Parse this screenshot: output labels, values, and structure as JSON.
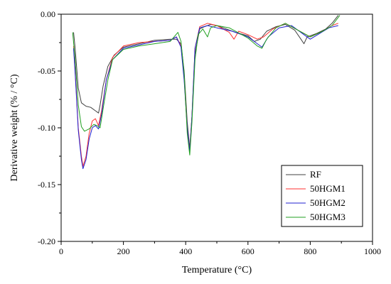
{
  "chart_data": {
    "type": "line",
    "title": "",
    "xlabel": "Temperature (°C)",
    "ylabel": "Derivative weight (% / °C)",
    "xlim": [
      0,
      1000
    ],
    "ylim": [
      -0.2,
      0.0
    ],
    "grid": false,
    "legend_position": "bottom-right",
    "x_ticks": [
      0,
      200,
      400,
      600,
      800,
      1000
    ],
    "x_tick_labels": [
      "0",
      "200",
      "400",
      "600",
      "800",
      "1000"
    ],
    "y_ticks": [
      0.0,
      -0.05,
      -0.1,
      -0.15,
      -0.2
    ],
    "y_tick_labels": [
      "0.00",
      "-0.05",
      "-0.10",
      "-0.15",
      "-0.20"
    ],
    "series": [
      {
        "name": "RF",
        "color": "#404040",
        "points": [
          [
            40,
            -0.016
          ],
          [
            45,
            -0.03
          ],
          [
            55,
            -0.065
          ],
          [
            65,
            -0.078
          ],
          [
            80,
            -0.081
          ],
          [
            95,
            -0.082
          ],
          [
            110,
            -0.085
          ],
          [
            120,
            -0.087
          ],
          [
            125,
            -0.08
          ],
          [
            135,
            -0.063
          ],
          [
            150,
            -0.046
          ],
          [
            170,
            -0.036
          ],
          [
            200,
            -0.029
          ],
          [
            250,
            -0.026
          ],
          [
            300,
            -0.023
          ],
          [
            350,
            -0.022
          ],
          [
            370,
            -0.022
          ],
          [
            385,
            -0.026
          ],
          [
            395,
            -0.05
          ],
          [
            405,
            -0.095
          ],
          [
            413,
            -0.118
          ],
          [
            420,
            -0.09
          ],
          [
            430,
            -0.035
          ],
          [
            445,
            -0.013
          ],
          [
            460,
            -0.011
          ],
          [
            480,
            -0.009
          ],
          [
            500,
            -0.01
          ],
          [
            520,
            -0.012
          ],
          [
            560,
            -0.016
          ],
          [
            600,
            -0.019
          ],
          [
            620,
            -0.024
          ],
          [
            640,
            -0.022
          ],
          [
            660,
            -0.015
          ],
          [
            690,
            -0.011
          ],
          [
            720,
            -0.009
          ],
          [
            750,
            -0.014
          ],
          [
            770,
            -0.022
          ],
          [
            780,
            -0.026
          ],
          [
            790,
            -0.02
          ],
          [
            820,
            -0.017
          ],
          [
            850,
            -0.013
          ],
          [
            870,
            -0.008
          ],
          [
            890,
            -0.001
          ]
        ]
      },
      {
        "name": "50HGM1",
        "color": "#ff3030",
        "points": [
          [
            40,
            -0.028
          ],
          [
            45,
            -0.05
          ],
          [
            55,
            -0.1
          ],
          [
            65,
            -0.125
          ],
          [
            70,
            -0.134
          ],
          [
            80,
            -0.125
          ],
          [
            90,
            -0.105
          ],
          [
            100,
            -0.094
          ],
          [
            110,
            -0.092
          ],
          [
            120,
            -0.098
          ],
          [
            130,
            -0.085
          ],
          [
            145,
            -0.058
          ],
          [
            165,
            -0.038
          ],
          [
            200,
            -0.028
          ],
          [
            250,
            -0.025
          ],
          [
            300,
            -0.024
          ],
          [
            350,
            -0.023
          ],
          [
            370,
            -0.02
          ],
          [
            385,
            -0.028
          ],
          [
            395,
            -0.055
          ],
          [
            405,
            -0.1
          ],
          [
            413,
            -0.12
          ],
          [
            420,
            -0.09
          ],
          [
            430,
            -0.03
          ],
          [
            445,
            -0.011
          ],
          [
            470,
            -0.008
          ],
          [
            500,
            -0.01
          ],
          [
            540,
            -0.016
          ],
          [
            555,
            -0.022
          ],
          [
            570,
            -0.015
          ],
          [
            600,
            -0.018
          ],
          [
            630,
            -0.022
          ],
          [
            650,
            -0.02
          ],
          [
            680,
            -0.013
          ],
          [
            720,
            -0.008
          ],
          [
            760,
            -0.014
          ],
          [
            800,
            -0.02
          ],
          [
            840,
            -0.015
          ],
          [
            870,
            -0.01
          ],
          [
            890,
            -0.008
          ]
        ]
      },
      {
        "name": "50HGM2",
        "color": "#2020d0",
        "points": [
          [
            40,
            -0.03
          ],
          [
            45,
            -0.052
          ],
          [
            55,
            -0.102
          ],
          [
            65,
            -0.128
          ],
          [
            70,
            -0.136
          ],
          [
            80,
            -0.128
          ],
          [
            90,
            -0.11
          ],
          [
            100,
            -0.1
          ],
          [
            110,
            -0.098
          ],
          [
            120,
            -0.101
          ],
          [
            130,
            -0.088
          ],
          [
            145,
            -0.058
          ],
          [
            165,
            -0.04
          ],
          [
            200,
            -0.03
          ],
          [
            250,
            -0.027
          ],
          [
            300,
            -0.024
          ],
          [
            350,
            -0.023
          ],
          [
            370,
            -0.02
          ],
          [
            385,
            -0.029
          ],
          [
            395,
            -0.058
          ],
          [
            405,
            -0.1
          ],
          [
            413,
            -0.121
          ],
          [
            420,
            -0.09
          ],
          [
            430,
            -0.03
          ],
          [
            445,
            -0.012
          ],
          [
            470,
            -0.01
          ],
          [
            500,
            -0.012
          ],
          [
            550,
            -0.015
          ],
          [
            600,
            -0.02
          ],
          [
            625,
            -0.025
          ],
          [
            645,
            -0.029
          ],
          [
            665,
            -0.02
          ],
          [
            700,
            -0.012
          ],
          [
            740,
            -0.01
          ],
          [
            780,
            -0.018
          ],
          [
            800,
            -0.022
          ],
          [
            830,
            -0.017
          ],
          [
            860,
            -0.012
          ],
          [
            890,
            -0.01
          ]
        ]
      },
      {
        "name": "50HGM3",
        "color": "#20a020",
        "points": [
          [
            37,
            -0.016
          ],
          [
            45,
            -0.04
          ],
          [
            55,
            -0.08
          ],
          [
            65,
            -0.099
          ],
          [
            75,
            -0.103
          ],
          [
            90,
            -0.101
          ],
          [
            105,
            -0.097
          ],
          [
            115,
            -0.098
          ],
          [
            125,
            -0.1
          ],
          [
            135,
            -0.083
          ],
          [
            150,
            -0.058
          ],
          [
            165,
            -0.04
          ],
          [
            200,
            -0.031
          ],
          [
            250,
            -0.028
          ],
          [
            300,
            -0.026
          ],
          [
            350,
            -0.024
          ],
          [
            375,
            -0.016
          ],
          [
            385,
            -0.024
          ],
          [
            395,
            -0.052
          ],
          [
            405,
            -0.105
          ],
          [
            413,
            -0.124
          ],
          [
            420,
            -0.095
          ],
          [
            430,
            -0.04
          ],
          [
            440,
            -0.018
          ],
          [
            455,
            -0.013
          ],
          [
            470,
            -0.02
          ],
          [
            480,
            -0.012
          ],
          [
            500,
            -0.01
          ],
          [
            540,
            -0.012
          ],
          [
            600,
            -0.021
          ],
          [
            630,
            -0.028
          ],
          [
            645,
            -0.03
          ],
          [
            660,
            -0.022
          ],
          [
            690,
            -0.012
          ],
          [
            720,
            -0.008
          ],
          [
            760,
            -0.014
          ],
          [
            800,
            -0.02
          ],
          [
            840,
            -0.015
          ],
          [
            870,
            -0.01
          ],
          [
            895,
            -0.001
          ]
        ]
      }
    ]
  }
}
